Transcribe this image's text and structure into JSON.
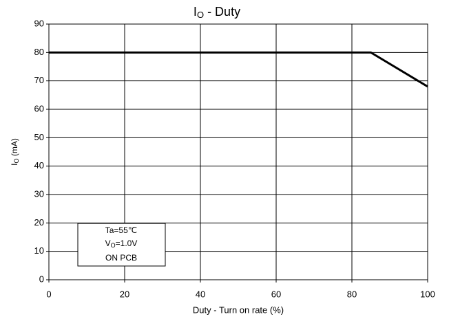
{
  "chart_data": {
    "type": "line",
    "title": [
      "I",
      "O",
      " - Duty"
    ],
    "ylabel": [
      "I",
      "O",
      " (mA)"
    ],
    "xlabel": "Duty - Turn on rate (%)",
    "annotation": [
      [
        "Ta=55℃"
      ],
      [
        "V",
        "O",
        "=1.0V"
      ],
      [
        "ON PCB"
      ]
    ],
    "x": [
      0,
      85,
      100
    ],
    "values": [
      80,
      80,
      68
    ],
    "color": "#000000",
    "xlim": [
      0,
      100
    ],
    "xticks": [
      0,
      20,
      40,
      60,
      80,
      100
    ],
    "ylim": [
      0,
      90
    ],
    "yticks": [
      0,
      10,
      20,
      30,
      40,
      50,
      60,
      70,
      80,
      90
    ],
    "grid": true
  }
}
